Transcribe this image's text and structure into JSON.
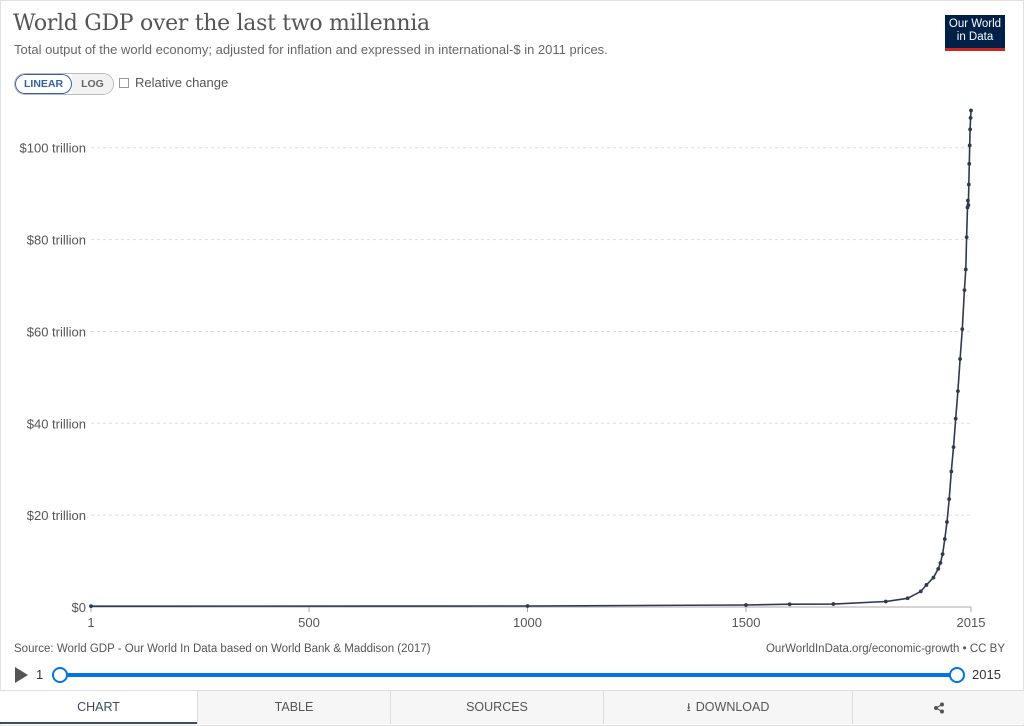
{
  "header": {
    "title": "World GDP over the last two millennia",
    "subtitle": "Total output of the world economy; adjusted for inflation and expressed in international-$ in 2011 prices.",
    "logo_line1": "Our World",
    "logo_line2": "in Data"
  },
  "controls": {
    "linear_label": "LINEAR",
    "log_label": "LOG",
    "relative_change_label": "Relative change"
  },
  "colors": {
    "line": "#2e3a4f",
    "grid": "#dddddd",
    "accent": "#0073e6",
    "logo_bg": "#002147",
    "logo_bar": "#ce261e"
  },
  "chart_data": {
    "type": "line",
    "title": "World GDP over the last two millennia",
    "xlim": [
      1,
      2015
    ],
    "ylim": [
      0,
      108
    ],
    "y_unit": "trillion international-$ (2011 prices)",
    "x_ticks": [
      1,
      500,
      1000,
      1500,
      2015
    ],
    "y_ticks": [
      0,
      20,
      40,
      60,
      80,
      100
    ],
    "y_tick_labels": [
      "$0",
      "$20 trillion",
      "$40 trillion",
      "$60 trillion",
      "$80 trillion",
      "$100 trillion"
    ],
    "grid": "horizontal dashed",
    "legend": "none",
    "series": [
      {
        "x": [
          1,
          1000,
          1500,
          1600,
          1700,
          1820,
          1870,
          1900,
          1913,
          1929,
          1940,
          1945,
          1950,
          1955,
          1960,
          1965,
          1970,
          1975,
          1980,
          1985,
          1990,
          1995,
          2000,
          2003,
          2005,
          2007,
          2008,
          2009,
          2010,
          2011,
          2012,
          2013,
          2014,
          2015
        ],
        "values": [
          0.18,
          0.21,
          0.43,
          0.6,
          0.64,
          1.2,
          1.9,
          3.4,
          4.8,
          6.4,
          8.3,
          9.6,
          11.5,
          14.8,
          18.5,
          23.5,
          29.5,
          34.8,
          41.0,
          47.0,
          54.0,
          60.5,
          69.0,
          73.5,
          80.5,
          87.0,
          88.5,
          87.5,
          92.0,
          96.5,
          100.5,
          104.0,
          106.5,
          108.1
        ]
      }
    ]
  },
  "footer": {
    "source": "Source: World GDP - Our World In Data based on World Bank & Maddison (2017)",
    "license": "OurWorldInData.org/economic-growth • CC BY"
  },
  "timeline": {
    "start_label": "1",
    "end_label": "2015"
  },
  "tabs": {
    "chart": "CHART",
    "table": "TABLE",
    "sources": "SOURCES",
    "download": "DOWNLOAD"
  }
}
